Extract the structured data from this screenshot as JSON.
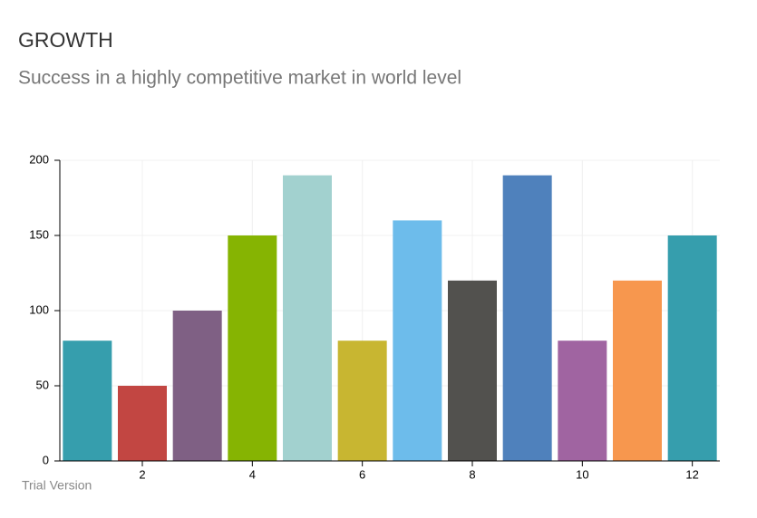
{
  "chart_data": {
    "type": "bar",
    "title": "GROWTH",
    "subtitle": "Success in a highly competitive market in world level",
    "watermark": "Trial Version",
    "x": [
      1,
      2,
      3,
      4,
      5,
      6,
      7,
      8,
      9,
      10,
      11,
      12
    ],
    "values": [
      80,
      50,
      100,
      150,
      190,
      80,
      160,
      120,
      190,
      80,
      120,
      150
    ],
    "colors": [
      "#369ead",
      "#c24642",
      "#7f6084",
      "#86b402",
      "#a2d1cf",
      "#c8b631",
      "#6dbceb",
      "#52514e",
      "#4f81bc",
      "#a064a1",
      "#f7974e",
      "#369ead"
    ],
    "xlim": [
      0.5,
      12.5
    ],
    "xticks": [
      2,
      4,
      6,
      8,
      10,
      12
    ],
    "ylim": [
      0,
      200
    ],
    "yticks": [
      0,
      50,
      100,
      150,
      200
    ],
    "grid": true
  }
}
